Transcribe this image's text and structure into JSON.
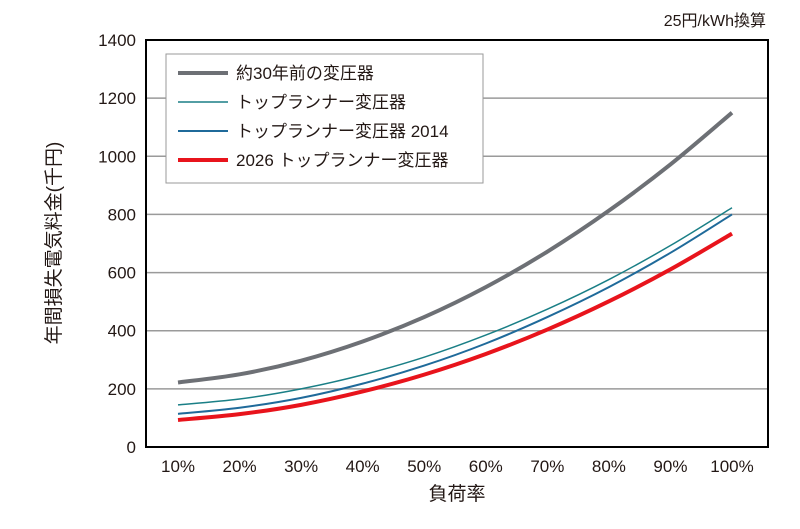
{
  "chart_data": {
    "type": "line",
    "note": "25円/kWh換算",
    "xlabel": "負荷率",
    "ylabel": "年間損失電気料金(千円)",
    "categories": [
      "10%",
      "20%",
      "30%",
      "40%",
      "50%",
      "60%",
      "70%",
      "80%",
      "90%",
      "100%"
    ],
    "ylim": [
      0,
      1400
    ],
    "yticks": [
      "0",
      "200",
      "400",
      "600",
      "800",
      "1000",
      "1200",
      "1400"
    ],
    "grid": true,
    "legend_position": "top-left",
    "series": [
      {
        "name": "約30年前の変圧器",
        "color": "#6d7075",
        "width": 4,
        "values": [
          222,
          250,
          297,
          363,
          447,
          550,
          672,
          813,
          972,
          1150
        ]
      },
      {
        "name": "トップランナー変圧器",
        "color": "#1a7f86",
        "width": 1.5,
        "values": [
          145,
          165,
          200,
          248,
          309,
          385,
          474,
          576,
          693,
          823
        ]
      },
      {
        "name": "トップランナー変圧器 2014",
        "color": "#1f6a9a",
        "width": 2,
        "values": [
          114,
          135,
          169,
          218,
          280,
          356,
          447,
          550,
          668,
          800
        ]
      },
      {
        "name": "2026 トップランナー変圧器",
        "color": "#e8141c",
        "width": 4,
        "values": [
          93,
          113,
          145,
          191,
          249,
          320,
          404,
          501,
          611,
          734
        ]
      }
    ]
  }
}
